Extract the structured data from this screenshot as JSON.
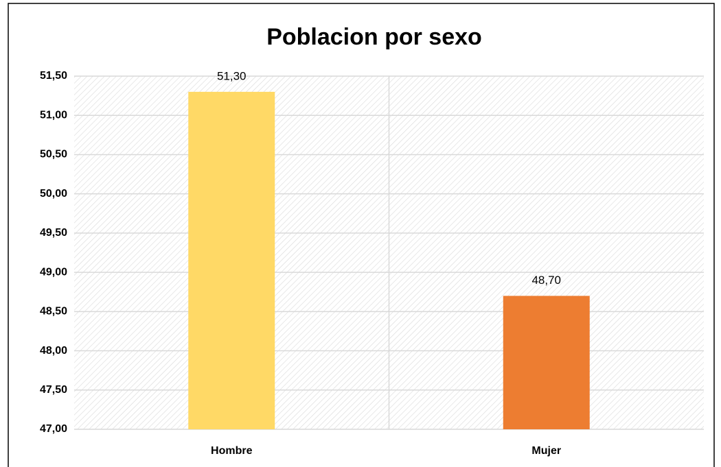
{
  "chart_data": {
    "type": "bar",
    "title": "Poblacion por sexo",
    "categories": [
      "Hombre",
      "Mujer"
    ],
    "values": [
      51.3,
      48.7
    ],
    "value_labels": [
      "51,30",
      "48,70"
    ],
    "colors": [
      "#ffd966",
      "#ed7d31"
    ],
    "ylim": [
      47,
      51.5
    ],
    "yticks": [
      {
        "value": 47,
        "label": "47,00"
      },
      {
        "value": 47.5,
        "label": "47,50"
      },
      {
        "value": 48,
        "label": "48,00"
      },
      {
        "value": 48.5,
        "label": "48,50"
      },
      {
        "value": 49,
        "label": "49,00"
      },
      {
        "value": 49.5,
        "label": "49,50"
      },
      {
        "value": 50,
        "label": "50,00"
      },
      {
        "value": 50.5,
        "label": "50,50"
      },
      {
        "value": 51,
        "label": "51,00"
      },
      {
        "value": 51.5,
        "label": "51,50"
      }
    ],
    "grid": true
  }
}
